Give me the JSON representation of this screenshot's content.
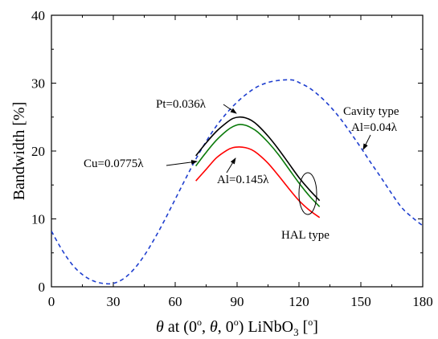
{
  "chart_data": {
    "type": "line",
    "xlabel": {
      "theta": "θ",
      "rest": " at (0",
      "sup1": "o",
      "comma": ", ",
      "theta2": "θ",
      "mid": ", 0",
      "sup2": "o",
      "tail": ") LiNbO",
      "sub": "3",
      "unitOpen": " [",
      "sup3": "o",
      "unitClose": "]"
    },
    "ylabel": "Bandwidth [%]",
    "xlim": [
      0,
      180
    ],
    "ylim": [
      0,
      40
    ],
    "xticks": [
      0,
      30,
      60,
      90,
      120,
      150,
      180
    ],
    "yticks": [
      0,
      10,
      20,
      30,
      40
    ],
    "grid": false,
    "series": [
      {
        "name": "Al=0.04λ",
        "color": "#1f3fcf",
        "dash": "dashed",
        "x": [
          0,
          5,
          10,
          15,
          20,
          25,
          30,
          35,
          40,
          45,
          50,
          55,
          60,
          65,
          70,
          75,
          80,
          85,
          90,
          95,
          100,
          105,
          110,
          115,
          118,
          120,
          125,
          130,
          135,
          140,
          145,
          150,
          155,
          160,
          165,
          170,
          175,
          180
        ],
        "y": [
          8.2,
          5.5,
          3.3,
          1.8,
          0.9,
          0.5,
          0.5,
          1.2,
          2.6,
          4.6,
          7.1,
          9.9,
          12.9,
          15.9,
          18.8,
          21.4,
          23.7,
          25.6,
          27.2,
          28.5,
          29.5,
          30.1,
          30.4,
          30.5,
          30.4,
          30.1,
          29.3,
          28.1,
          26.6,
          24.8,
          22.7,
          20.5,
          18.2,
          16.0,
          13.7,
          11.6,
          10.2,
          9.0
        ]
      },
      {
        "name": "Pt=0.036λ",
        "color": "#000000",
        "dash": "solid",
        "x": [
          70,
          75,
          80,
          85,
          88,
          91,
          94,
          97,
          100,
          105,
          110,
          115,
          120,
          125,
          130
        ],
        "y": [
          19.3,
          21.2,
          22.9,
          24.2,
          24.8,
          25.0,
          24.9,
          24.5,
          23.8,
          22.2,
          20.3,
          18.2,
          16.1,
          14.3,
          12.7
        ]
      },
      {
        "name": "Cu=0.0775λ",
        "color": "#0a7a0a",
        "dash": "solid",
        "x": [
          70,
          75,
          80,
          85,
          88,
          91,
          94,
          97,
          100,
          105,
          110,
          115,
          120,
          125,
          130
        ],
        "y": [
          17.8,
          19.8,
          21.6,
          23.0,
          23.6,
          23.9,
          23.8,
          23.4,
          22.8,
          21.3,
          19.5,
          17.4,
          15.3,
          13.4,
          11.8
        ]
      },
      {
        "name": "Al=0.145λ",
        "color": "#ff0000",
        "dash": "solid",
        "x": [
          70,
          75,
          80,
          85,
          88,
          91,
          94,
          97,
          100,
          105,
          110,
          115,
          120,
          125,
          130
        ],
        "y": [
          15.6,
          17.3,
          19.0,
          20.1,
          20.5,
          20.6,
          20.5,
          20.2,
          19.6,
          18.2,
          16.4,
          14.5,
          12.7,
          11.3,
          10.2
        ]
      }
    ],
    "annotations": {
      "pt": "Pt=0.036λ",
      "cu": "Cu=0.0775λ",
      "al_hal": "Al=0.145λ",
      "hal": "HAL type",
      "cavity": "Cavity type",
      "al_cav": "Al=0.04λ"
    }
  }
}
